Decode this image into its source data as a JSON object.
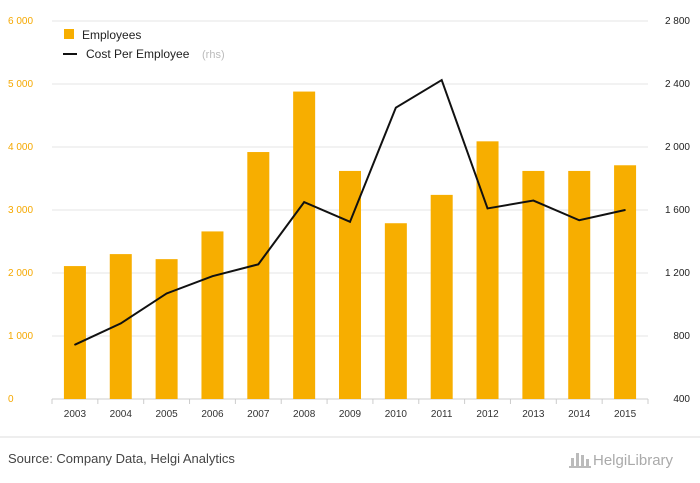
{
  "chart_data": {
    "type": "bar",
    "categories": [
      "2003",
      "2004",
      "2005",
      "2006",
      "2007",
      "2008",
      "2009",
      "2010",
      "2011",
      "2012",
      "2013",
      "2014",
      "2015"
    ],
    "series": [
      {
        "name": "Employees",
        "type": "bar",
        "axis": "left",
        "color": "#f7ae00",
        "values": [
          2110,
          2300,
          2220,
          2660,
          3920,
          4880,
          3620,
          2790,
          3240,
          4090,
          3620,
          3620,
          3710
        ]
      },
      {
        "name": "Cost Per Employee",
        "type": "line",
        "axis": "right",
        "color": "#111111",
        "values": [
          745,
          880,
          1070,
          1180,
          1255,
          1650,
          1525,
          2250,
          2425,
          1610,
          1660,
          1535,
          1600
        ]
      }
    ],
    "ylim": [
      0,
      6000
    ],
    "y2lim": [
      400,
      2800
    ],
    "yticks": [
      "0",
      "1 000",
      "2 000",
      "3 000",
      "4 000",
      "5 000",
      "6 000"
    ],
    "y2ticks": [
      "400",
      "800",
      "1 200",
      "1 600",
      "2 000",
      "2 400",
      "2 800"
    ],
    "legend": {
      "position": "top-left",
      "employees_label": "Employees",
      "cost_label": "Cost Per Employee",
      "cost_suffix": "(rhs)"
    },
    "grid": "horizontal"
  },
  "footer": {
    "source": "Source: Company Data, Helgi Analytics",
    "logo": "HelgiLibrary"
  }
}
